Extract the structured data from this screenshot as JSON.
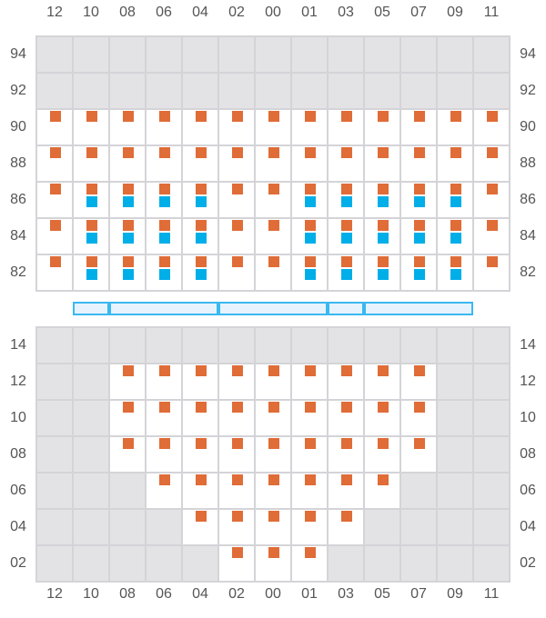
{
  "columns": [
    "12",
    "10",
    "08",
    "06",
    "04",
    "02",
    "00",
    "01",
    "03",
    "05",
    "07",
    "09",
    "11"
  ],
  "colors": {
    "orange": "#e06c37",
    "blue": "#00aee8",
    "gray_cell": "#e3e3e6",
    "grid_line": "#d4d4d8",
    "bar_border": "#3ab8f0",
    "bar_fill": "#e6f3fc"
  },
  "top_section": {
    "rows": [
      {
        "label": "94",
        "cells": [
          "g",
          "g",
          "g",
          "g",
          "g",
          "g",
          "g",
          "g",
          "g",
          "g",
          "g",
          "g",
          "g"
        ]
      },
      {
        "label": "92",
        "cells": [
          "g",
          "g",
          "g",
          "g",
          "g",
          "g",
          "g",
          "g",
          "g",
          "g",
          "g",
          "g",
          "g"
        ]
      },
      {
        "label": "90",
        "cells": [
          "o",
          "o",
          "o",
          "o",
          "o",
          "o",
          "o",
          "o",
          "o",
          "o",
          "o",
          "o",
          "o"
        ]
      },
      {
        "label": "88",
        "cells": [
          "o",
          "o",
          "o",
          "o",
          "o",
          "o",
          "o",
          "o",
          "o",
          "o",
          "o",
          "o",
          "o"
        ]
      },
      {
        "label": "86",
        "cells": [
          "o",
          "ob",
          "ob",
          "ob",
          "ob",
          "o",
          "o",
          "ob",
          "ob",
          "ob",
          "ob",
          "ob",
          "o"
        ]
      },
      {
        "label": "84",
        "cells": [
          "o",
          "ob",
          "ob",
          "ob",
          "ob",
          "o",
          "o",
          "ob",
          "ob",
          "ob",
          "ob",
          "ob",
          "o"
        ]
      },
      {
        "label": "82",
        "cells": [
          "o",
          "ob",
          "ob",
          "ob",
          "ob",
          "o",
          "o",
          "ob",
          "ob",
          "ob",
          "ob",
          "ob",
          "o"
        ]
      }
    ]
  },
  "bar_segments": [
    {
      "from_col": "10",
      "to_col": "10"
    },
    {
      "from_col": "08",
      "to_col": "04"
    },
    {
      "from_col": "02",
      "to_col": "01"
    },
    {
      "from_col": "03",
      "to_col": "03"
    },
    {
      "from_col": "05",
      "to_col": "09"
    }
  ],
  "bottom_section": {
    "rows": [
      {
        "label": "14",
        "cells": [
          "g",
          "g",
          "g",
          "g",
          "g",
          "g",
          "g",
          "g",
          "g",
          "g",
          "g",
          "g",
          "g"
        ]
      },
      {
        "label": "12",
        "cells": [
          "g",
          "g",
          "o",
          "o",
          "o",
          "o",
          "o",
          "o",
          "o",
          "o",
          "o",
          "g",
          "g"
        ]
      },
      {
        "label": "10",
        "cells": [
          "g",
          "g",
          "o",
          "o",
          "o",
          "o",
          "o",
          "o",
          "o",
          "o",
          "o",
          "g",
          "g"
        ]
      },
      {
        "label": "08",
        "cells": [
          "g",
          "g",
          "o",
          "o",
          "o",
          "o",
          "o",
          "o",
          "o",
          "o",
          "o",
          "g",
          "g"
        ]
      },
      {
        "label": "06",
        "cells": [
          "g",
          "g",
          "g",
          "o",
          "o",
          "o",
          "o",
          "o",
          "o",
          "o",
          "g",
          "g",
          "g"
        ]
      },
      {
        "label": "04",
        "cells": [
          "g",
          "g",
          "g",
          "g",
          "o",
          "o",
          "o",
          "o",
          "o",
          "g",
          "g",
          "g",
          "g"
        ]
      },
      {
        "label": "02",
        "cells": [
          "g",
          "g",
          "g",
          "g",
          "g",
          "o",
          "o",
          "o",
          "g",
          "g",
          "g",
          "g",
          "g"
        ]
      }
    ]
  }
}
